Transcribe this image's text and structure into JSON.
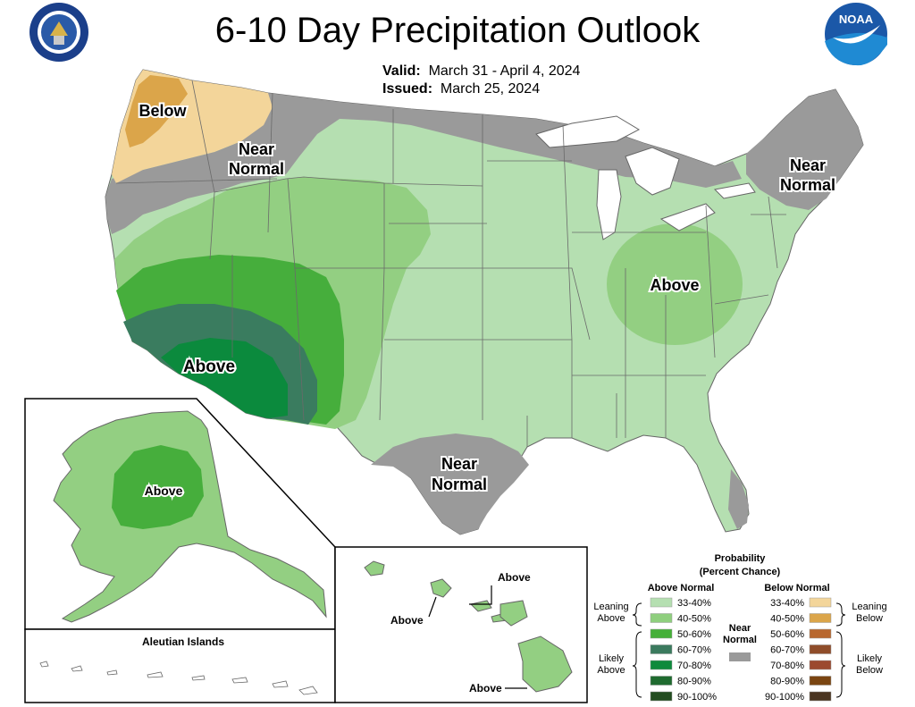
{
  "title": "6-10 Day Precipitation Outlook",
  "valid_label": "Valid:",
  "valid_value": "March 31 - April 4, 2024",
  "issued_label": "Issued:",
  "issued_value": "March 25, 2024",
  "logos": {
    "commerce": "dept-of-commerce-seal",
    "noaa_text": "NOAA"
  },
  "map_labels": {
    "below_nw": "Below",
    "near_normal": "Near",
    "near_normal_2": "Normal",
    "above": "Above"
  },
  "alaska": {
    "label": "Above",
    "aleutian_title": "Aleutian Islands"
  },
  "hawaii": {
    "label": "Above"
  },
  "legend": {
    "title_1": "Probability",
    "title_2": "(Percent Chance)",
    "above_header": "Above Normal",
    "below_header": "Below Normal",
    "near_1": "Near",
    "near_2": "Normal",
    "leaning": "Leaning",
    "above_word": "Above",
    "below_word": "Below",
    "likely": "Likely",
    "bins": [
      "33-40%",
      "40-50%",
      "50-60%",
      "60-70%",
      "70-80%",
      "80-90%",
      "90-100%"
    ],
    "above_colors": [
      "#b5dfb1",
      "#8fcf7e",
      "#45b038",
      "#3b7a5e",
      "#0e8a3c",
      "#1f6b2f",
      "#234d20"
    ],
    "below_colors": [
      "#f3d59a",
      "#dba54a",
      "#b8672e",
      "#8f4d2a",
      "#9c4a2f",
      "#7a4511",
      "#4a3520"
    ],
    "near_color": "#9a9a9a"
  },
  "colors": {
    "above_33_40": "#b5dfb1",
    "above_40_50": "#93cf82",
    "above_50_60": "#46ae3c",
    "above_60_70": "#3a7c5f",
    "above_70_80": "#0b8a3d",
    "below_33_40": "#f3d59a",
    "below_40_50": "#dba54a",
    "near_normal": "#9a9a9a",
    "water": "#ffffff"
  }
}
